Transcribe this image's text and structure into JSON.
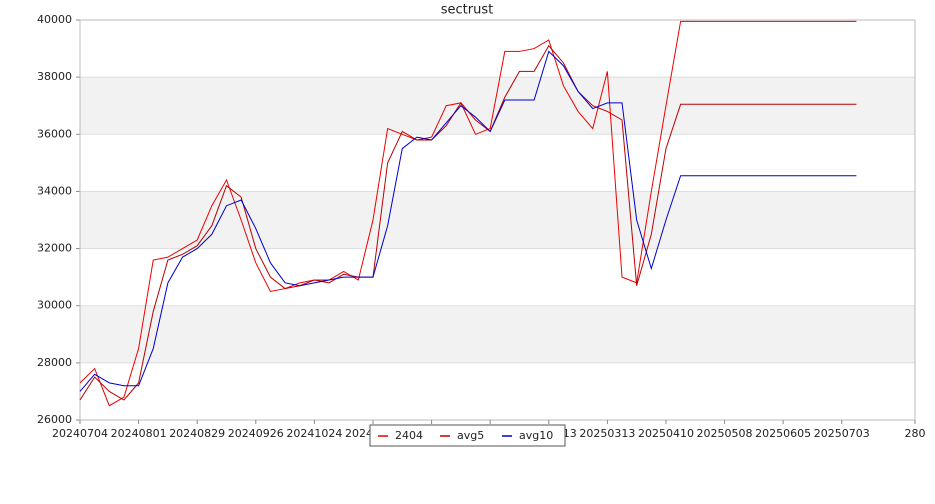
{
  "chart_data": {
    "type": "line",
    "title": "sectrust",
    "x": [
      "20240704",
      "20240711",
      "20240718",
      "20240725",
      "20240801",
      "20240808",
      "20240815",
      "20240822",
      "20240829",
      "20240905",
      "20240912",
      "20240919",
      "20240926",
      "20241003",
      "20241010",
      "20241017",
      "20241024",
      "20241031",
      "20241107",
      "20241114",
      "20241121",
      "20241128",
      "20241205",
      "20241212",
      "20241219",
      "20241226",
      "20250102",
      "20250109",
      "20250116",
      "20250123",
      "20250130",
      "20250206",
      "20250213",
      "20250220",
      "20250227",
      "20250306",
      "20250313",
      "20250320",
      "20250327",
      "20250403",
      "20250410",
      "20250417",
      "20250424",
      "20250501",
      "20250508",
      "20250515",
      "20250522",
      "20250529",
      "20250605",
      "20250612",
      "20250619",
      "20250626",
      "20250703",
      "20250710"
    ],
    "series": [
      {
        "name": "2404",
        "color": "#ee0000",
        "values": [
          27300,
          27800,
          26500,
          26800,
          28500,
          31600,
          31700,
          32000,
          32300,
          33500,
          34400,
          33000,
          31500,
          30500,
          30600,
          30800,
          30900,
          30900,
          31200,
          30900,
          33000,
          36200,
          36000,
          35800,
          35900,
          37000,
          37100,
          36000,
          36200,
          38900,
          38900,
          39000,
          39300,
          37700,
          36800,
          36200,
          38200,
          31000,
          30800,
          34000,
          37000,
          39950,
          39950,
          39950,
          39950,
          39950,
          39950,
          39950,
          39950,
          39950,
          39950,
          39950,
          39950,
          39950
        ]
      },
      {
        "name": "avg5",
        "color": "#bb0000",
        "values": [
          26700,
          27500,
          27000,
          26700,
          27300,
          29800,
          31600,
          31800,
          32100,
          32800,
          34200,
          33800,
          32000,
          31000,
          30600,
          30700,
          30900,
          30800,
          31100,
          31000,
          31000,
          35000,
          36100,
          35800,
          35800,
          36300,
          37100,
          36500,
          36100,
          37300,
          38200,
          38200,
          39100,
          38500,
          37500,
          37000,
          36800,
          36500,
          30700,
          32500,
          35500,
          37050,
          37050,
          37050,
          37050,
          37050,
          37050,
          37050,
          37050,
          37050,
          37050,
          37050,
          37050,
          37050
        ]
      },
      {
        "name": "avg10",
        "color": "#0000cc",
        "values": [
          27000,
          27600,
          27300,
          27200,
          27200,
          28500,
          30800,
          31700,
          32000,
          32500,
          33500,
          33700,
          32700,
          31500,
          30800,
          30700,
          30800,
          30900,
          31000,
          31000,
          31000,
          32800,
          35500,
          35900,
          35800,
          36400,
          37000,
          36600,
          36100,
          37200,
          37200,
          37200,
          38900,
          38400,
          37500,
          36900,
          37100,
          37100,
          33000,
          31300,
          33000,
          34550,
          34550,
          34550,
          34550,
          34550,
          34550,
          34550,
          34550,
          34550,
          34550,
          34550,
          34550,
          34550
        ]
      }
    ],
    "xlim": [
      "20240704",
      "20250807"
    ],
    "xticks": [
      "20240704",
      "20240801",
      "20240829",
      "20240926",
      "20241024",
      "20241121",
      "20241219",
      "20250116",
      "20250213",
      "20250313",
      "20250410",
      "20250508",
      "20250605",
      "20250703",
      {
        "value": "20250807",
        "label": "280"
      }
    ],
    "ylim": [
      26000,
      40000
    ],
    "yticks": [
      26000,
      28000,
      30000,
      32000,
      34000,
      36000,
      38000,
      40000
    ],
    "grid": true
  }
}
